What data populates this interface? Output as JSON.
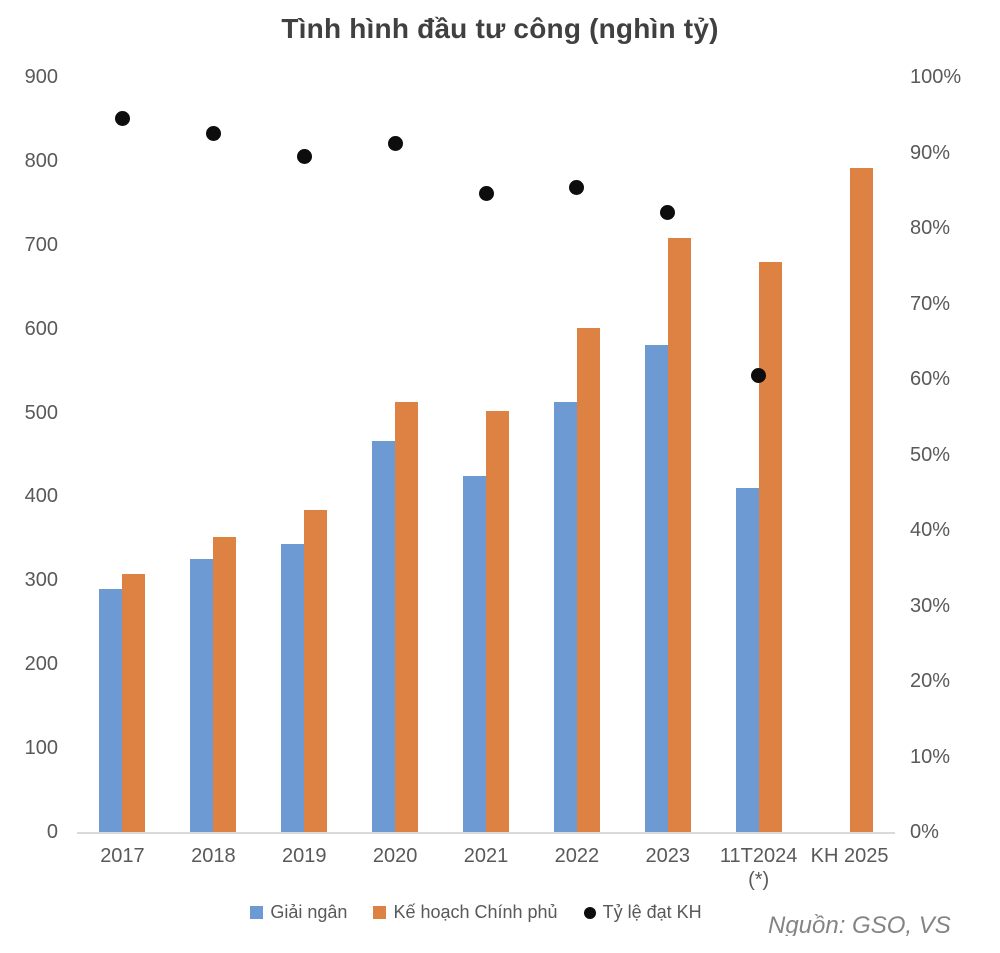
{
  "chart_data": {
    "type": "bar",
    "title": "Tình hình đầu tư công (nghìn tỷ)",
    "categories": [
      "2017",
      "2018",
      "2019",
      "2020",
      "2021",
      "2022",
      "2023",
      "11T2024",
      "KH 2025"
    ],
    "category_sublabels": [
      "",
      "",
      "",
      "",
      "",
      "",
      "",
      "(*)",
      ""
    ],
    "series": [
      {
        "name": "Giải ngân",
        "type": "bar",
        "axis": "left",
        "color": "#6D9AD3",
        "values": [
          290,
          325,
          343,
          466,
          424,
          512,
          580,
          410,
          null
        ]
      },
      {
        "name": "Kế hoạch Chính phủ",
        "type": "bar",
        "axis": "left",
        "color": "#DE8244",
        "values": [
          308,
          352,
          384,
          512,
          502,
          601,
          708,
          680,
          791
        ]
      },
      {
        "name": "Tỷ lệ đạt KH",
        "type": "scatter",
        "axis": "right",
        "color": "#0d0d0d",
        "values": [
          94.5,
          92.5,
          89.5,
          91.2,
          84.6,
          85.3,
          82.0,
          60.4,
          null
        ]
      }
    ],
    "left_axis": {
      "min": 0,
      "max": 900,
      "step": 100,
      "ticks": [
        "0",
        "100",
        "200",
        "300",
        "400",
        "500",
        "600",
        "700",
        "800",
        "900"
      ]
    },
    "right_axis": {
      "min": 0,
      "max": 100,
      "step": 10,
      "ticks": [
        "0%",
        "10%",
        "20%",
        "30%",
        "40%",
        "50%",
        "60%",
        "70%",
        "80%",
        "90%",
        "100%"
      ]
    },
    "grid": "off",
    "legend_position": "bottom",
    "source": "Nguồn: GSO, VS"
  }
}
